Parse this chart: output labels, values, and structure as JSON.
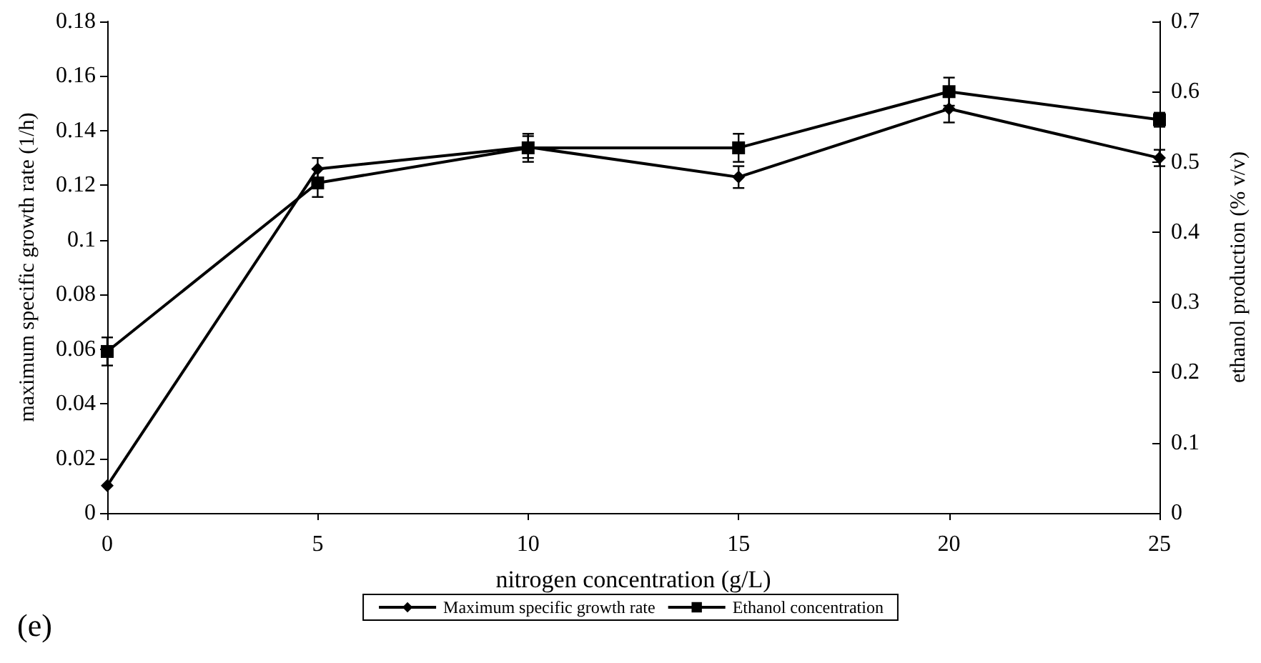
{
  "chart_data": {
    "type": "line",
    "xlabel": "nitrogen concentration (g/L)",
    "ylabel": "maximum specific growth rate (1/h)",
    "y2label": "ethanol production (% v/v)",
    "annotations": [
      "(e)"
    ],
    "x": [
      0,
      5,
      10,
      15,
      20,
      25
    ],
    "xlim": [
      0,
      25
    ],
    "xticks": [
      0,
      5,
      10,
      15,
      20,
      25
    ],
    "ylim": [
      0,
      0.18
    ],
    "yticks": [
      0,
      0.02,
      0.04,
      0.06,
      0.08,
      0.1,
      0.12,
      0.14,
      0.16,
      0.18
    ],
    "y2lim": [
      0,
      0.7
    ],
    "y2ticks": [
      0,
      0.1,
      0.2,
      0.3,
      0.4,
      0.5,
      0.6,
      0.7
    ],
    "series": [
      {
        "name": "Maximum specific growth rate",
        "color": "#000000",
        "marker": "diamond",
        "values": [
          0.01,
          0.126,
          0.134,
          0.123,
          0.148,
          0.13
        ],
        "errors": [
          null,
          0.004,
          0.004,
          0.004,
          0.005,
          0.003
        ]
      },
      {
        "name": "Ethanol concentration",
        "color": "#000000",
        "marker": "square",
        "axis": "y2",
        "values": [
          0.23,
          0.47,
          0.52,
          0.52,
          0.6,
          0.56
        ],
        "errors": [
          0.02,
          0.02,
          0.02,
          0.02,
          0.02,
          0.01
        ]
      }
    ],
    "grid": false,
    "legend": "bottom",
    "line_style": "solid"
  }
}
